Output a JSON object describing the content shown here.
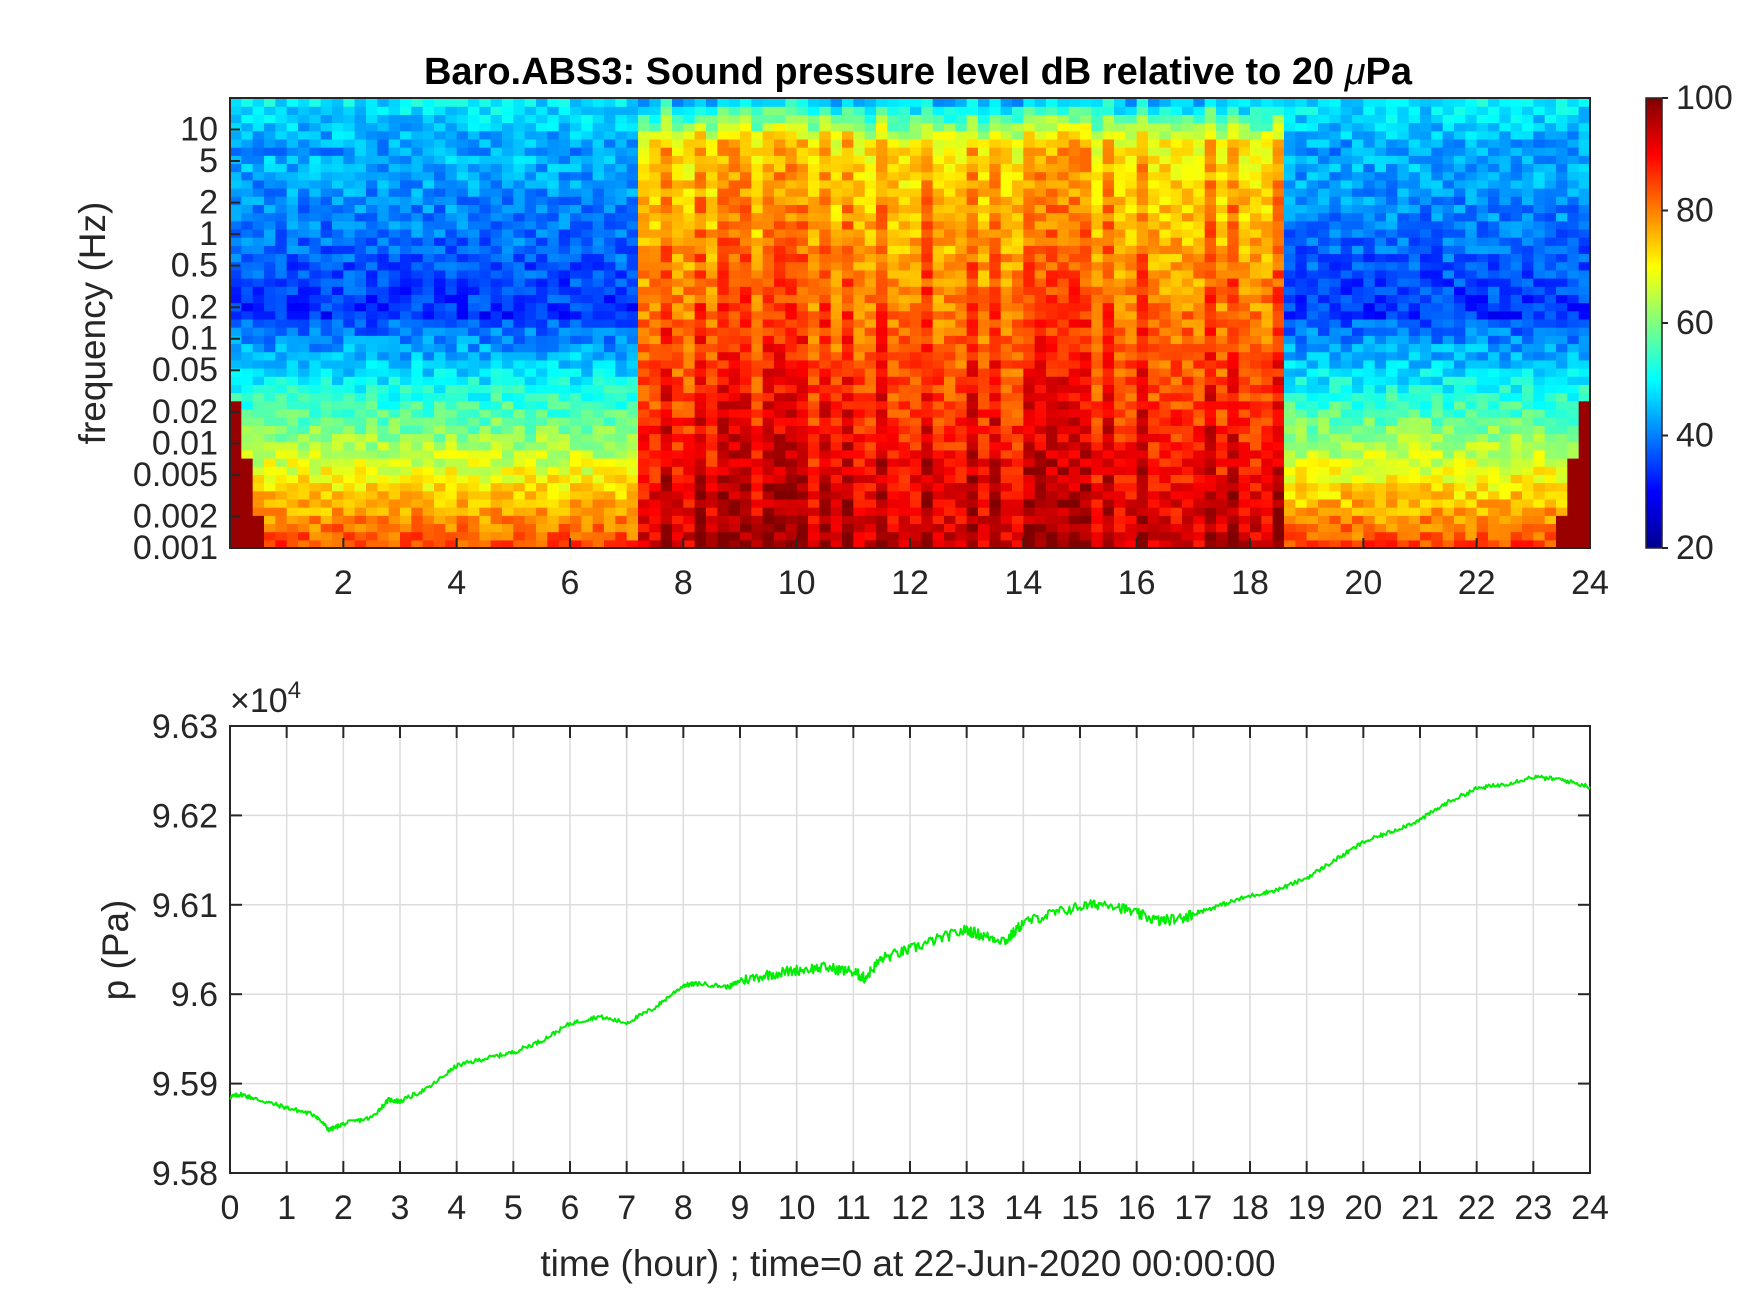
{
  "chart_data": [
    {
      "type": "heatmap",
      "title": "Baro.ABS3: Sound pressure level dB relative to 20 μPa",
      "title_main": "Baro.ABS3: Sound pressure level dB relative to 20 ",
      "title_symbol": "μ",
      "title_unit": "Pa",
      "xlabel": "",
      "ylabel": "frequency (Hz)",
      "xlim": [
        0,
        24
      ],
      "x_ticks": [
        "2",
        "4",
        "6",
        "8",
        "10",
        "12",
        "14",
        "16",
        "18",
        "20",
        "22",
        "24"
      ],
      "x_tick_values": [
        2,
        4,
        6,
        8,
        10,
        12,
        14,
        16,
        18,
        20,
        22,
        24
      ],
      "y_scale": "log",
      "ylim": [
        0.001,
        20
      ],
      "y_ticks": [
        "0.001",
        "0.002",
        "0.005",
        "0.01",
        "0.02",
        "0.05",
        "0.1",
        "0.2",
        "0.5",
        "1",
        "2",
        "5",
        "10"
      ],
      "y_tick_values": [
        0.001,
        0.002,
        0.005,
        0.01,
        0.02,
        0.05,
        0.1,
        0.2,
        0.5,
        1,
        2,
        5,
        10
      ],
      "colormap": "jet",
      "colorbar": {
        "range": [
          20,
          100
        ],
        "ticks": [
          "20",
          "40",
          "60",
          "80",
          "100"
        ],
        "tick_values": [
          20,
          40,
          60,
          80,
          100
        ]
      },
      "description_regions": {
        "quiet_hours": [
          [
            0,
            7.2
          ],
          [
            18.6,
            24
          ]
        ],
        "loud_hours": [
          7.2,
          18.6
        ],
        "low_freq_level_db": 85,
        "high_freq_level_db": 45
      }
    },
    {
      "type": "line",
      "title": "",
      "xlabel": "time (hour) ; time=0 at 22-Jun-2020 00:00:00",
      "ylabel": "p (Pa)",
      "xlim": [
        0,
        24
      ],
      "ylim": [
        95800,
        96300
      ],
      "exponent_label": "×10",
      "exponent_power": "4",
      "x_ticks": [
        "0",
        "1",
        "2",
        "3",
        "4",
        "5",
        "6",
        "7",
        "8",
        "9",
        "10",
        "11",
        "12",
        "13",
        "14",
        "15",
        "16",
        "17",
        "18",
        "19",
        "20",
        "21",
        "22",
        "23",
        "24"
      ],
      "x_tick_values": [
        0,
        1,
        2,
        3,
        4,
        5,
        6,
        7,
        8,
        9,
        10,
        11,
        12,
        13,
        14,
        15,
        16,
        17,
        18,
        19,
        20,
        21,
        22,
        23,
        24
      ],
      "y_ticks": [
        "9.58",
        "9.59",
        "9.6",
        "9.61",
        "9.62",
        "9.63"
      ],
      "y_tick_values": [
        95800,
        95900,
        96000,
        96100,
        96200,
        96300
      ],
      "grid": true,
      "line_color": "#00ee00",
      "series": [
        {
          "x": [
            0,
            0.2,
            0.5,
            1,
            1.5,
            1.75,
            2,
            2.5,
            2.8,
            3,
            3.5,
            4,
            4.5,
            5,
            5.5,
            6,
            6.5,
            7,
            7.5,
            8,
            8.3,
            8.8,
            9,
            9.5,
            10,
            10.5,
            11,
            11.2,
            11.5,
            12,
            12.5,
            13,
            13.3,
            13.7,
            14,
            14.5,
            15,
            15.5,
            16,
            16.4,
            16.8,
            17,
            17.5,
            18,
            18.5,
            19,
            19.5,
            20,
            20.5,
            21,
            21.5,
            22,
            22.5,
            23,
            23.5,
            24
          ],
          "y": [
            95885,
            95888,
            95882,
            95873,
            95865,
            95848,
            95855,
            95862,
            95882,
            95880,
            95895,
            95920,
            95928,
            95935,
            95948,
            95967,
            95975,
            95968,
            95985,
            96010,
            96012,
            96008,
            96015,
            96022,
            96027,
            96030,
            96025,
            96018,
            96040,
            96050,
            96062,
            96072,
            96065,
            96060,
            96080,
            96090,
            96098,
            96102,
            96090,
            96082,
            96085,
            96090,
            96100,
            96110,
            96117,
            96130,
            96150,
            96170,
            96182,
            96195,
            96215,
            96230,
            96235,
            96243,
            96240,
            96232
          ]
        }
      ]
    }
  ]
}
